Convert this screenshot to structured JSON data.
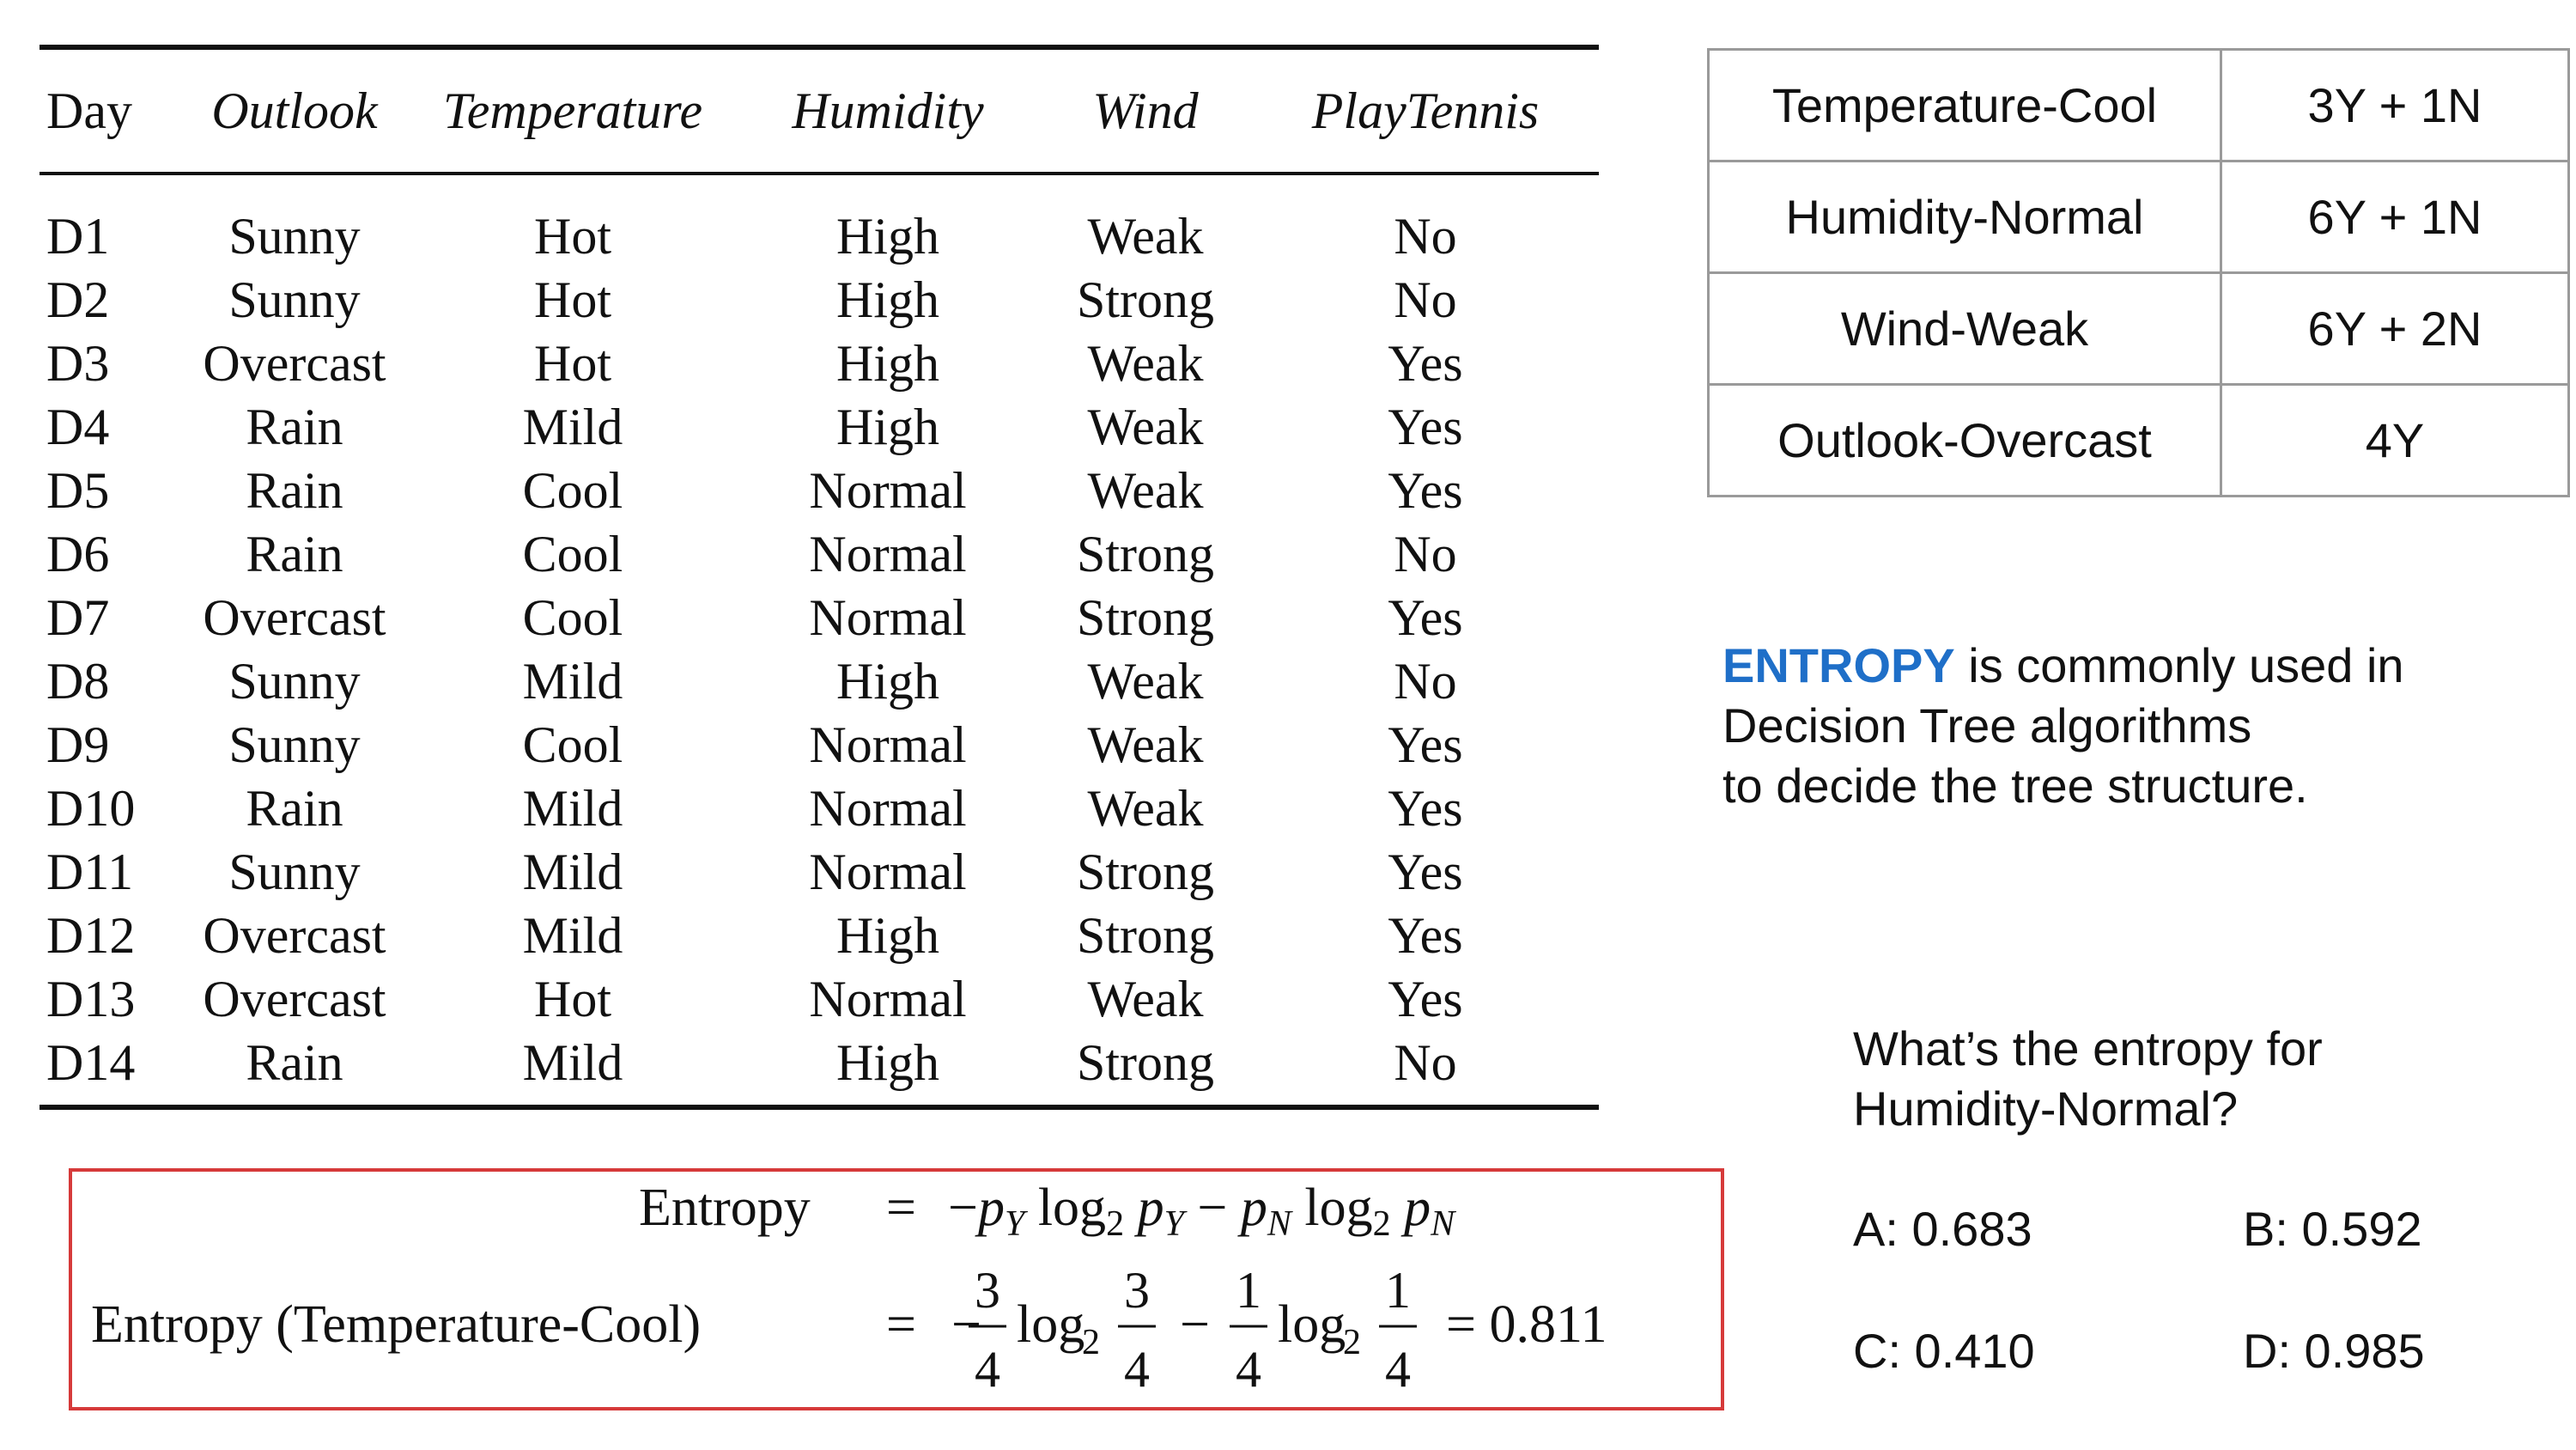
{
  "dataset_table": {
    "columns": [
      "Day",
      "Outlook",
      "Temperature",
      "Humidity",
      "Wind",
      "PlayTennis"
    ],
    "rows": [
      [
        "D1",
        "Sunny",
        "Hot",
        "High",
        "Weak",
        "No"
      ],
      [
        "D2",
        "Sunny",
        "Hot",
        "High",
        "Strong",
        "No"
      ],
      [
        "D3",
        "Overcast",
        "Hot",
        "High",
        "Weak",
        "Yes"
      ],
      [
        "D4",
        "Rain",
        "Mild",
        "High",
        "Weak",
        "Yes"
      ],
      [
        "D5",
        "Rain",
        "Cool",
        "Normal",
        "Weak",
        "Yes"
      ],
      [
        "D6",
        "Rain",
        "Cool",
        "Normal",
        "Strong",
        "No"
      ],
      [
        "D7",
        "Overcast",
        "Cool",
        "Normal",
        "Strong",
        "Yes"
      ],
      [
        "D8",
        "Sunny",
        "Mild",
        "High",
        "Weak",
        "No"
      ],
      [
        "D9",
        "Sunny",
        "Cool",
        "Normal",
        "Weak",
        "Yes"
      ],
      [
        "D10",
        "Rain",
        "Mild",
        "Normal",
        "Weak",
        "Yes"
      ],
      [
        "D11",
        "Sunny",
        "Mild",
        "Normal",
        "Strong",
        "Yes"
      ],
      [
        "D12",
        "Overcast",
        "Mild",
        "High",
        "Strong",
        "Yes"
      ],
      [
        "D13",
        "Overcast",
        "Hot",
        "Normal",
        "Weak",
        "Yes"
      ],
      [
        "D14",
        "Rain",
        "Mild",
        "High",
        "Strong",
        "No"
      ]
    ]
  },
  "summary_table": [
    {
      "attribute": "Temperature-Cool",
      "count": "3Y + 1N"
    },
    {
      "attribute": "Humidity-Normal",
      "count": "6Y + 1N"
    },
    {
      "attribute": "Wind-Weak",
      "count": "6Y + 2N"
    },
    {
      "attribute": "Outlook-Overcast",
      "count": "4Y"
    }
  ],
  "entropy_description": {
    "keyword": "ENTROPY",
    "line1_rest": " is commonly used in",
    "line2": "Decision Tree algorithms",
    "line3": "to decide the tree structure.",
    "keyword_color": "#1f6fc8"
  },
  "question": {
    "line1": "What’s the entropy for",
    "line2": "Humidity-Normal?",
    "options": {
      "a": "A: 0.683",
      "b": "B: 0.592",
      "c": "C: 0.410",
      "d": "D: 0.985"
    }
  },
  "formula": {
    "line1_label": "Entropy",
    "line1_equals": "=",
    "line1_rhs": "−p_Y log₂ p_Y − p_N log₂ p_N",
    "line2_label": "Entropy (Temperature-Cool)",
    "line2_equals": "=",
    "frac1_num": "3",
    "frac1_den": "4",
    "frac2_num": "3",
    "frac2_den": "4",
    "frac3_num": "1",
    "frac3_den": "4",
    "frac4_num": "1",
    "frac4_den": "4",
    "log_text": "log",
    "log_base": "2",
    "result": "= 0.811",
    "box_color": "#d63a3a"
  }
}
